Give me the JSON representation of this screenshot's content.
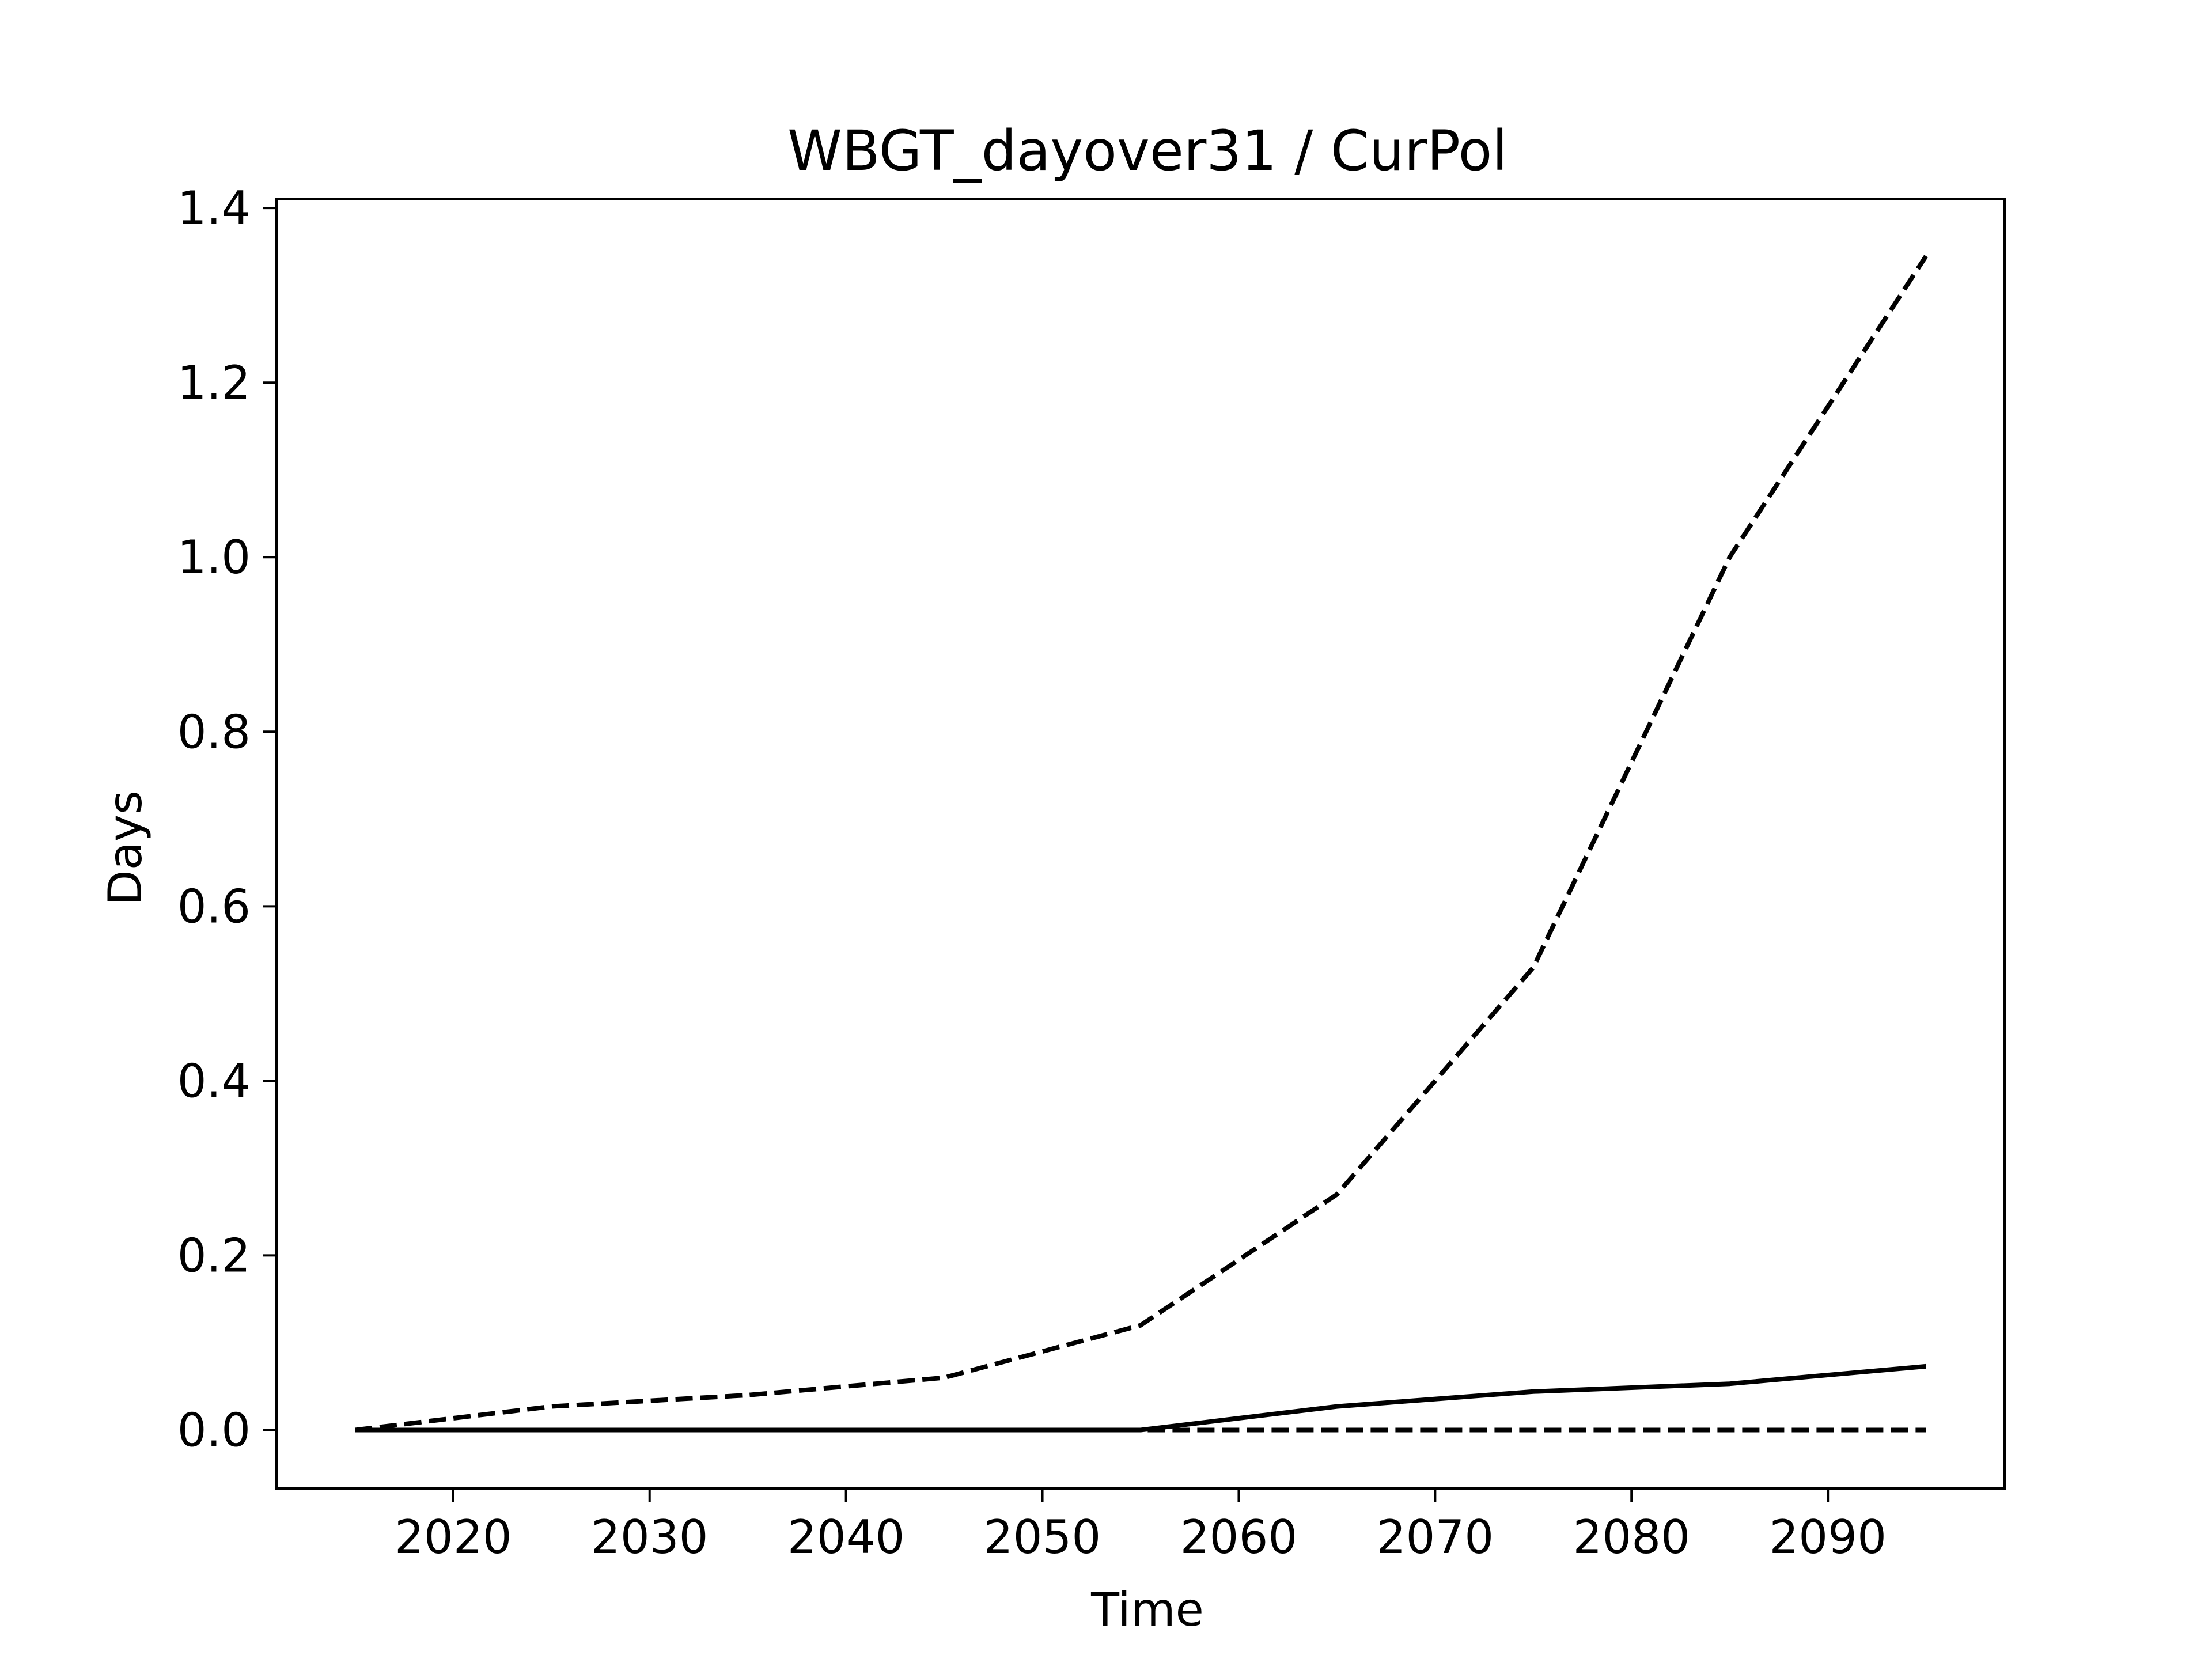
{
  "chart_data": {
    "type": "line",
    "title": "WBGT_dayover31 / CurPol",
    "xlabel": "Time",
    "ylabel": "Days",
    "xlim": [
      2011,
      2099
    ],
    "ylim": [
      -0.067,
      1.41
    ],
    "xticks": [
      2020,
      2030,
      2040,
      2050,
      2060,
      2070,
      2080,
      2090
    ],
    "xtick_labels": [
      "2020",
      "2030",
      "2040",
      "2050",
      "2060",
      "2070",
      "2080",
      "2090"
    ],
    "yticks": [
      0.0,
      0.2,
      0.4,
      0.6,
      0.8,
      1.0,
      1.2,
      1.4
    ],
    "ytick_labels": [
      "0.0",
      "0.2",
      "0.4",
      "0.6",
      "0.8",
      "1.0",
      "1.2",
      "1.4"
    ],
    "grid": false,
    "x": [
      2015,
      2025,
      2035,
      2045,
      2055,
      2065,
      2075,
      2085,
      2095
    ],
    "series": [
      {
        "style": "dashed",
        "color": "#000000",
        "values": [
          0.0,
          0.027,
          0.04,
          0.06,
          0.12,
          0.27,
          0.53,
          1.0,
          1.345
        ]
      },
      {
        "style": "solid",
        "color": "#000000",
        "values": [
          0.0,
          0.0,
          0.0,
          0.0,
          0.0,
          0.027,
          0.044,
          0.053,
          0.073
        ]
      },
      {
        "style": "dashed",
        "color": "#000000",
        "values": [
          0.0,
          0.0,
          0.0,
          0.0,
          0.0,
          0.0,
          0.0,
          0.0,
          0.0
        ]
      }
    ]
  }
}
